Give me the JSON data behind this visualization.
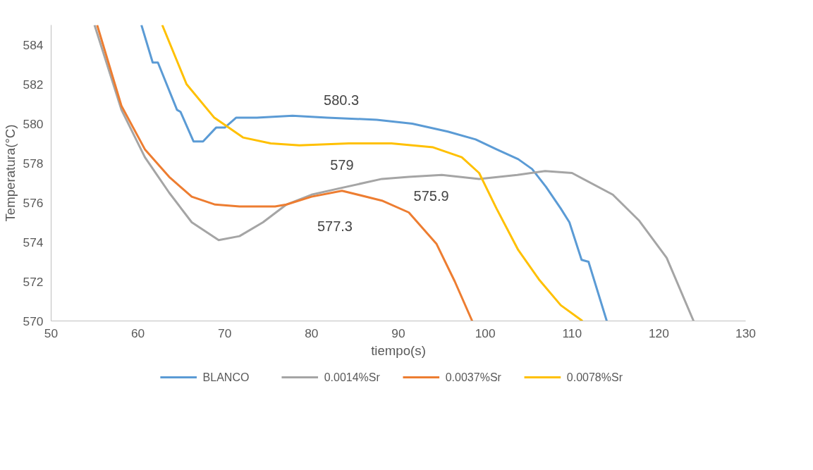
{
  "chart_data": {
    "type": "line",
    "xlabel": "tiempo(s)",
    "ylabel": "Temperatura(°C)",
    "xlim": [
      50,
      130
    ],
    "ylim": [
      570,
      585
    ],
    "xticks": [
      50,
      60,
      70,
      80,
      90,
      100,
      110,
      120,
      130
    ],
    "yticks": [
      570,
      572,
      574,
      576,
      578,
      580,
      582,
      584
    ],
    "grid": false,
    "legend": "bottom",
    "marker": "none",
    "line_style": "solid",
    "series": [
      {
        "name": "BLANCO",
        "color": "#5b9bd5",
        "x": [
          60.4,
          61.7,
          62.3,
          64.5,
          64.9,
          66.4,
          67.5,
          69.0,
          70.0,
          71.3,
          73.7,
          77.8,
          81.8,
          87.5,
          91.6,
          95.7,
          98.9,
          101.3,
          103.8,
          105.4,
          107.0,
          108.7,
          109.7,
          111.1,
          111.9,
          114.0
        ],
        "values": [
          585,
          583.1,
          583.1,
          580.7,
          580.6,
          579.1,
          579.1,
          579.8,
          579.8,
          580.3,
          580.3,
          580.4,
          580.3,
          580.2,
          580.0,
          579.6,
          579.2,
          578.7,
          578.2,
          577.7,
          576.8,
          575.7,
          575.0,
          573.1,
          573.0,
          570
        ]
      },
      {
        "name": "0.0014%Sr",
        "color": "#a5a5a5",
        "x": [
          55.0,
          58.1,
          60.8,
          63.6,
          66.2,
          69.3,
          71.7,
          74.4,
          77.1,
          80.0,
          83.0,
          88.1,
          91.2,
          95.0,
          99.3,
          103.7,
          106.9,
          110.0,
          114.7,
          117.7,
          120.9,
          124.0
        ],
        "values": [
          585,
          580.7,
          578.3,
          576.5,
          575.0,
          574.1,
          574.3,
          575.0,
          575.9,
          576.4,
          576.7,
          577.2,
          577.3,
          577.4,
          577.2,
          577.4,
          577.6,
          577.5,
          576.4,
          575.1,
          573.2,
          570
        ]
      },
      {
        "name": "0.0037%Sr",
        "color": "#ed7d31",
        "x": [
          55.3,
          58.1,
          60.8,
          63.6,
          66.2,
          68.9,
          71.7,
          75.8,
          77.1,
          80.0,
          83.5,
          88.1,
          91.2,
          94.4,
          96.5,
          98.5
        ],
        "values": [
          585,
          580.9,
          578.7,
          577.3,
          576.3,
          575.9,
          575.8,
          575.8,
          575.9,
          576.3,
          576.6,
          576.1,
          575.5,
          573.9,
          572.0,
          570
        ]
      },
      {
        "name": "0.0078%Sr",
        "color": "#ffc000",
        "x": [
          62.8,
          65.6,
          68.8,
          72.1,
          75.3,
          78.6,
          84.3,
          89.2,
          94.0,
          97.3,
          99.3,
          101.3,
          103.8,
          106.2,
          108.7,
          111.2
        ],
        "values": [
          585,
          582.0,
          580.3,
          579.3,
          579.0,
          578.9,
          579.0,
          579.0,
          578.8,
          578.3,
          577.5,
          575.7,
          573.6,
          572.1,
          570.8,
          570
        ]
      }
    ],
    "annotations": [
      {
        "text": "580.3",
        "x": 81.8,
        "y": 580.3
      },
      {
        "text": "579",
        "x": 84.3,
        "y": 579.0
      },
      {
        "text": "575.9",
        "x": 95.0,
        "y": 577.4
      },
      {
        "text": "577.3",
        "x": 83.5,
        "y": 576.6
      }
    ]
  }
}
